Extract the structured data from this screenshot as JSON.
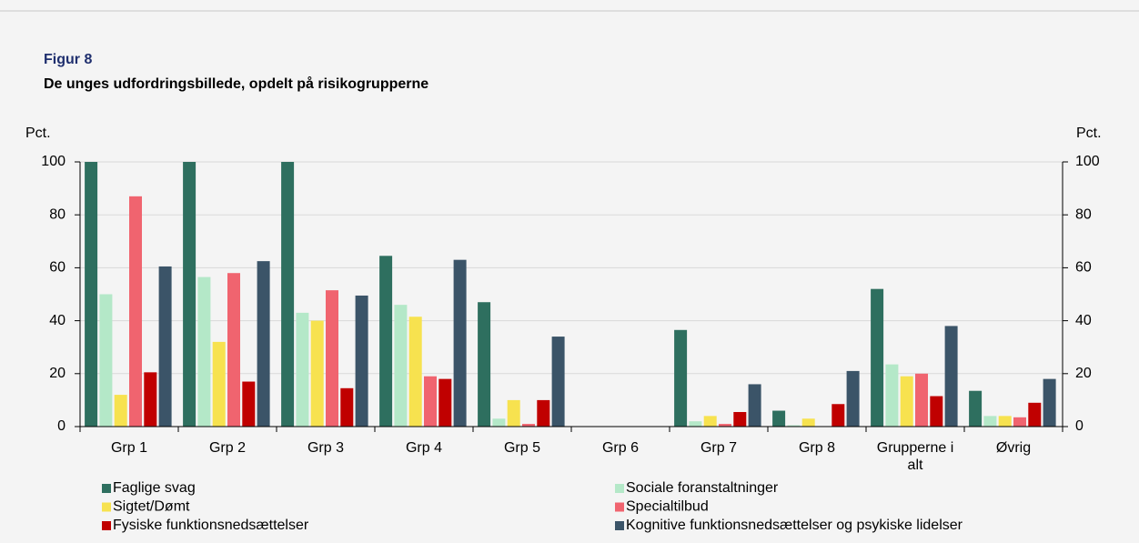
{
  "chart_data": {
    "type": "bar",
    "title": "Figur 8",
    "subtitle": "De unges udfordringsbillede, opdelt på risikogrupperne",
    "y_label": "Pct.",
    "y2_label": "Pct.",
    "categories": [
      "Grp 1",
      "Grp 2",
      "Grp 3",
      "Grp 4",
      "Grp 5",
      "Grp 6",
      "Grp 7",
      "Grp 8",
      "Grupperne i alt",
      "Øvrig"
    ],
    "series": [
      {
        "name": "Faglige svag",
        "color": "#2e6f5f",
        "values": [
          100,
          100,
          100,
          64.5,
          47,
          0,
          36.5,
          6,
          52,
          13.5
        ]
      },
      {
        "name": "Sociale foranstaltninger",
        "color": "#b4e8c8",
        "values": [
          50,
          56.5,
          43,
          46,
          3,
          0,
          2,
          0.5,
          23.5,
          4
        ]
      },
      {
        "name": "Sigtet/Dømt",
        "color": "#f7e24f",
        "values": [
          12,
          32,
          40,
          41.5,
          10,
          0,
          4,
          3,
          19,
          4
        ]
      },
      {
        "name": "Specialtilbud",
        "color": "#f0646f",
        "values": [
          87,
          58,
          51.5,
          19,
          1,
          0,
          1,
          0,
          20,
          3.5
        ]
      },
      {
        "name": "Fysiske funktionsnedsættelser",
        "color": "#c00000",
        "values": [
          20.5,
          17,
          14.5,
          18,
          10,
          0,
          5.5,
          8.5,
          11.5,
          9
        ]
      },
      {
        "name": "Kognitive funktionsnedsættelser og psykiske lidelser",
        "color": "#3b5468",
        "values": [
          60.5,
          62.5,
          49.5,
          63,
          34,
          0,
          16,
          21,
          38,
          18
        ]
      }
    ],
    "ylim": [
      0,
      100
    ],
    "yticks": [
      0,
      20,
      40,
      60,
      80,
      100
    ],
    "y2lim": [
      0,
      100
    ],
    "y2ticks": [
      0,
      20,
      40,
      60,
      80,
      100
    ],
    "grid": true
  }
}
